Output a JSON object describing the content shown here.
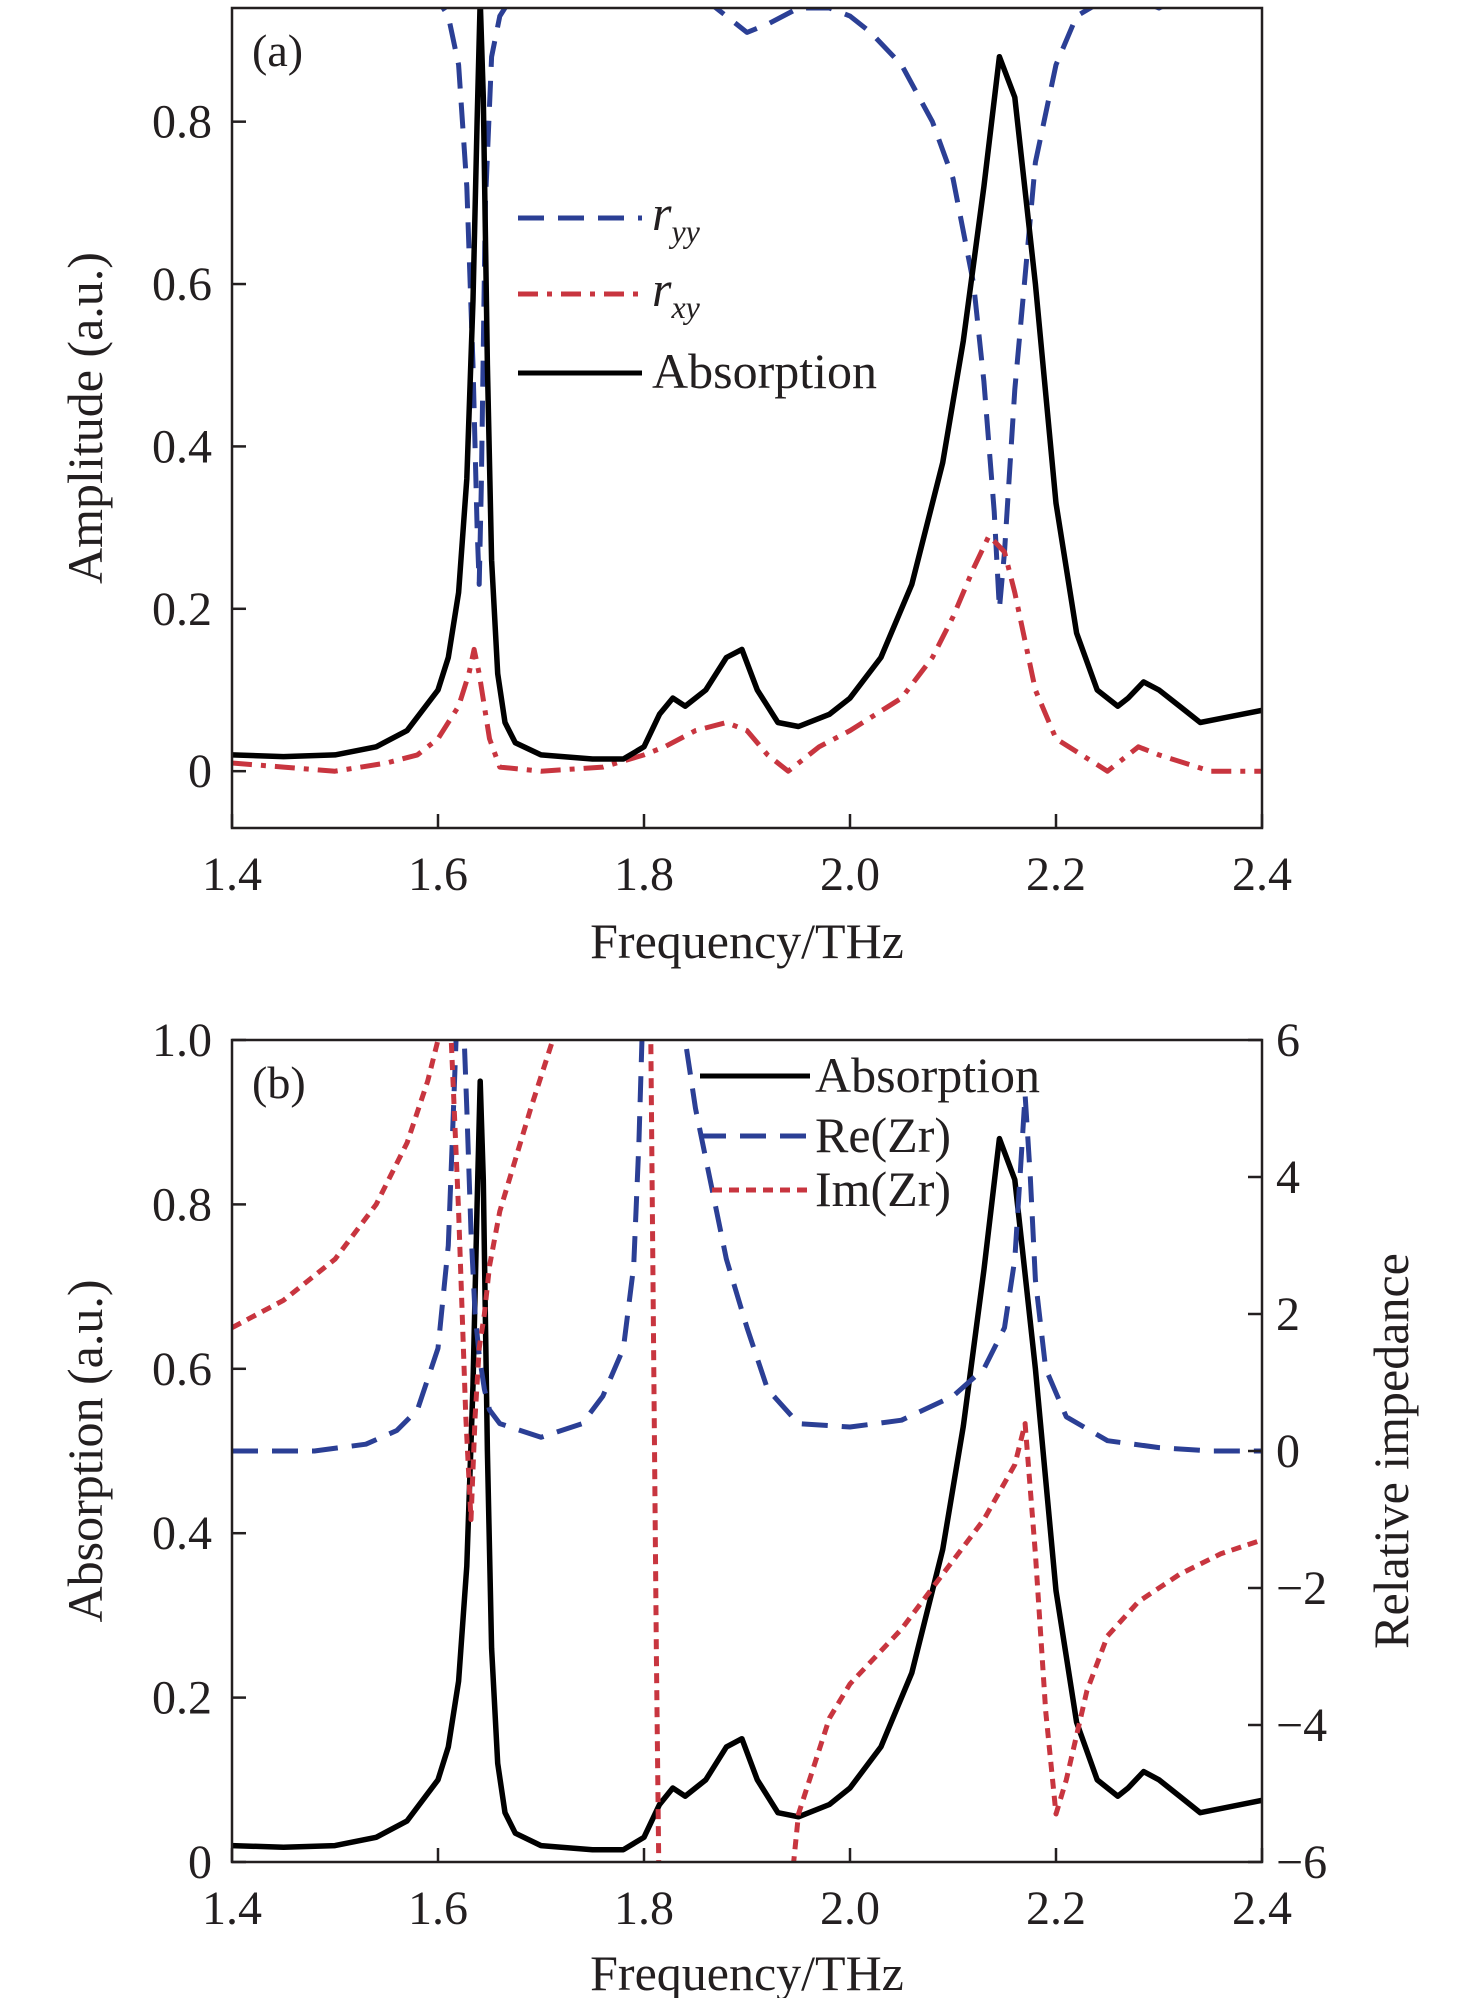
{
  "chart_data": [
    {
      "panel": "(a)",
      "type": "line",
      "xlabel": "Frequency/THz",
      "ylabel": "Amplitude (a.u.)",
      "xlim": [
        1.4,
        2.4
      ],
      "ylim": [
        -0.07,
        0.94
      ],
      "xticks": [
        "1.4",
        "1.6",
        "1.8",
        "2.0",
        "2.2",
        "2.4"
      ],
      "yticks": [
        "0",
        "0.2",
        "0.4",
        "0.6",
        "0.8"
      ],
      "legend": "upper-middle",
      "series": [
        {
          "name": "r",
          "sub": "yy",
          "color": "#2b3f95",
          "style": "dashed",
          "x": [
            1.4,
            1.5,
            1.56,
            1.6,
            1.61,
            1.62,
            1.628,
            1.634,
            1.638,
            1.64,
            1.642,
            1.646,
            1.652,
            1.66,
            1.68,
            1.75,
            1.85,
            1.88,
            1.9,
            1.92,
            1.95,
            1.98,
            2.0,
            2.02,
            2.05,
            2.08,
            2.1,
            2.12,
            2.13,
            2.14,
            2.145,
            2.15,
            2.16,
            2.18,
            2.2,
            2.22,
            2.26,
            2.3,
            2.35,
            2.4
          ],
          "y": [
            0.99,
            0.99,
            0.98,
            0.95,
            0.93,
            0.87,
            0.72,
            0.5,
            0.3,
            0.23,
            0.35,
            0.7,
            0.88,
            0.93,
            0.97,
            0.99,
            0.96,
            0.93,
            0.91,
            0.92,
            0.94,
            0.94,
            0.93,
            0.91,
            0.87,
            0.8,
            0.73,
            0.6,
            0.48,
            0.32,
            0.2,
            0.27,
            0.47,
            0.75,
            0.87,
            0.93,
            0.96,
            0.94,
            0.97,
            0.99
          ]
        },
        {
          "name": "r",
          "sub": "xy",
          "color": "#c8353f",
          "style": "dash-dot",
          "x": [
            1.4,
            1.45,
            1.5,
            1.55,
            1.58,
            1.6,
            1.62,
            1.63,
            1.635,
            1.64,
            1.65,
            1.66,
            1.7,
            1.76,
            1.8,
            1.82,
            1.85,
            1.88,
            1.9,
            1.92,
            1.94,
            1.97,
            2.0,
            2.05,
            2.08,
            2.1,
            2.12,
            2.135,
            2.15,
            2.16,
            2.18,
            2.2,
            2.25,
            2.28,
            2.3,
            2.35,
            2.38,
            2.4
          ],
          "y": [
            0.01,
            0.005,
            0.0,
            0.01,
            0.02,
            0.04,
            0.08,
            0.12,
            0.15,
            0.12,
            0.04,
            0.005,
            0.0,
            0.005,
            0.02,
            0.03,
            0.05,
            0.06,
            0.05,
            0.02,
            0.0,
            0.03,
            0.05,
            0.09,
            0.14,
            0.19,
            0.25,
            0.29,
            0.27,
            0.22,
            0.1,
            0.04,
            0.0,
            0.03,
            0.02,
            0.0,
            0.0,
            0.0
          ]
        },
        {
          "name": "Absorption",
          "color": "#000000",
          "style": "solid",
          "x": [
            1.4,
            1.45,
            1.5,
            1.54,
            1.57,
            1.6,
            1.61,
            1.62,
            1.628,
            1.634,
            1.638,
            1.641,
            1.644,
            1.648,
            1.652,
            1.658,
            1.665,
            1.675,
            1.7,
            1.75,
            1.78,
            1.8,
            1.815,
            1.828,
            1.84,
            1.86,
            1.88,
            1.895,
            1.91,
            1.93,
            1.95,
            1.98,
            2.0,
            2.03,
            2.06,
            2.09,
            2.11,
            2.13,
            2.145,
            2.16,
            2.18,
            2.2,
            2.22,
            2.24,
            2.26,
            2.27,
            2.285,
            2.3,
            2.32,
            2.34,
            2.36,
            2.4
          ],
          "y": [
            0.02,
            0.018,
            0.02,
            0.03,
            0.05,
            0.1,
            0.14,
            0.22,
            0.36,
            0.58,
            0.8,
            0.95,
            0.83,
            0.5,
            0.26,
            0.12,
            0.06,
            0.035,
            0.02,
            0.015,
            0.015,
            0.03,
            0.07,
            0.09,
            0.08,
            0.1,
            0.14,
            0.15,
            0.1,
            0.06,
            0.055,
            0.07,
            0.09,
            0.14,
            0.23,
            0.38,
            0.53,
            0.72,
            0.88,
            0.83,
            0.6,
            0.33,
            0.17,
            0.1,
            0.08,
            0.09,
            0.11,
            0.1,
            0.08,
            0.06,
            0.065,
            0.075
          ]
        }
      ]
    },
    {
      "panel": "(b)",
      "type": "line",
      "xlabel": "Frequency/THz",
      "ylabel": "Absorption (a.u.)",
      "y2label": "Relative impedance",
      "xlim": [
        1.4,
        2.4
      ],
      "ylim": [
        0,
        1.0
      ],
      "y2lim": [
        -6,
        6
      ],
      "xticks": [
        "1.4",
        "1.6",
        "1.8",
        "2.0",
        "2.2",
        "2.4"
      ],
      "yticks": [
        "0",
        "0.2",
        "0.4",
        "0.6",
        "0.8",
        "1.0"
      ],
      "y2ticks": [
        "−6",
        "−4",
        "−2",
        "0",
        "2",
        "4",
        "6"
      ],
      "legend": "top-right",
      "series": [
        {
          "name": "Absorption",
          "color": "#000000",
          "style": "solid",
          "axis": "left",
          "x": [
            1.4,
            1.45,
            1.5,
            1.54,
            1.57,
            1.6,
            1.61,
            1.62,
            1.628,
            1.634,
            1.638,
            1.641,
            1.644,
            1.648,
            1.652,
            1.658,
            1.665,
            1.675,
            1.7,
            1.75,
            1.78,
            1.8,
            1.815,
            1.828,
            1.84,
            1.86,
            1.88,
            1.895,
            1.91,
            1.93,
            1.95,
            1.98,
            2.0,
            2.03,
            2.06,
            2.09,
            2.11,
            2.13,
            2.145,
            2.16,
            2.18,
            2.2,
            2.22,
            2.24,
            2.26,
            2.27,
            2.285,
            2.3,
            2.32,
            2.34,
            2.36,
            2.4
          ],
          "y": [
            0.02,
            0.018,
            0.02,
            0.03,
            0.05,
            0.1,
            0.14,
            0.22,
            0.36,
            0.58,
            0.8,
            0.95,
            0.83,
            0.5,
            0.26,
            0.12,
            0.06,
            0.035,
            0.02,
            0.015,
            0.015,
            0.03,
            0.07,
            0.09,
            0.08,
            0.1,
            0.14,
            0.15,
            0.1,
            0.06,
            0.055,
            0.07,
            0.09,
            0.14,
            0.23,
            0.38,
            0.53,
            0.72,
            0.88,
            0.83,
            0.6,
            0.33,
            0.17,
            0.1,
            0.08,
            0.09,
            0.11,
            0.1,
            0.08,
            0.06,
            0.065,
            0.075
          ]
        },
        {
          "name": "Re(Zr)",
          "color": "#2b3f95",
          "style": "dashed",
          "axis": "right",
          "x": [
            1.4,
            1.48,
            1.53,
            1.56,
            1.58,
            1.6,
            1.61,
            1.615,
            1.62,
            1.623,
            1.628,
            1.632,
            1.636,
            1.64,
            1.645,
            1.65,
            1.66,
            1.7,
            1.74,
            1.76,
            1.78,
            1.79,
            1.795,
            1.8,
            1.83,
            1.85,
            1.88,
            1.9,
            1.92,
            1.95,
            2.0,
            2.05,
            2.1,
            2.13,
            2.15,
            2.16,
            2.165,
            2.17,
            2.175,
            2.18,
            2.19,
            2.21,
            2.25,
            2.3,
            2.35,
            2.4
          ],
          "y": [
            0.0,
            0.0,
            0.1,
            0.3,
            0.6,
            1.5,
            3.0,
            5.0,
            7.0,
            7.0,
            5.0,
            3.2,
            2.0,
            1.4,
            0.9,
            0.6,
            0.4,
            0.2,
            0.4,
            0.8,
            1.5,
            2.7,
            4.5,
            7.0,
            7.0,
            5.0,
            2.8,
            1.8,
            0.9,
            0.4,
            0.35,
            0.45,
            0.8,
            1.2,
            1.8,
            2.8,
            4.0,
            5.2,
            4.0,
            2.5,
            1.2,
            0.5,
            0.15,
            0.05,
            0.0,
            0.0
          ]
        },
        {
          "name": "Im(Zr)",
          "color": "#c8353f",
          "style": "dotted",
          "axis": "right",
          "x": [
            1.4,
            1.45,
            1.5,
            1.54,
            1.57,
            1.59,
            1.6,
            1.605,
            1.61,
            1.62,
            1.627,
            1.632,
            1.636,
            1.64,
            1.645,
            1.65,
            1.66,
            1.69,
            1.72,
            1.728,
            1.806,
            1.809,
            1.812,
            1.815,
            1.83,
            1.9,
            1.93,
            1.944,
            1.95,
            1.98,
            2.0,
            2.05,
            2.1,
            2.13,
            2.16,
            2.17,
            2.18,
            2.19,
            2.2,
            2.21,
            2.23,
            2.25,
            2.28,
            2.32,
            2.36,
            2.4
          ],
          "y": [
            1.8,
            2.2,
            2.8,
            3.6,
            4.5,
            5.4,
            6.0,
            6.5,
            7.0,
            3.5,
            0.5,
            -1.0,
            0.5,
            1.5,
            2.0,
            2.7,
            3.5,
            5.0,
            6.4,
            7.0,
            7.0,
            2.0,
            -3.0,
            -7.0,
            -7.0,
            -7.0,
            -7.0,
            -6.2,
            -5.3,
            -3.9,
            -3.4,
            -2.6,
            -1.6,
            -1.0,
            -0.2,
            0.4,
            -1.5,
            -3.8,
            -5.3,
            -4.8,
            -3.5,
            -2.7,
            -2.2,
            -1.8,
            -1.5,
            -1.3
          ]
        }
      ]
    }
  ]
}
